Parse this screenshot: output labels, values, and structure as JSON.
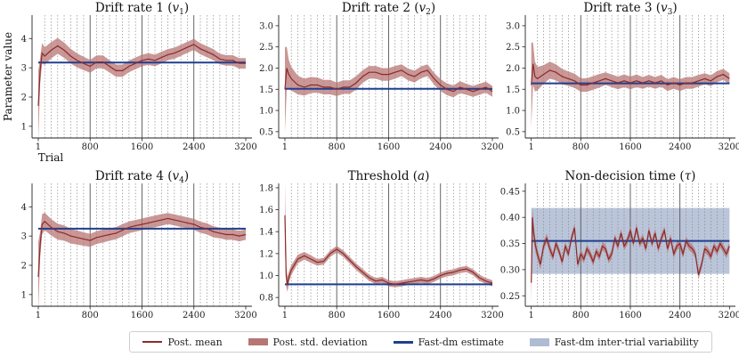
{
  "colors": {
    "mean": "#8b2a2a",
    "sd_band": "#b77574",
    "fastdm": "#1f3f8f",
    "variability": "#aebbd3",
    "grid_solid": "#555555",
    "grid_dotted": "#8a8a8a"
  },
  "figure": {
    "ylabel": "Parameter value",
    "xlabel": "Trial"
  },
  "legend": {
    "mean": "Post. mean",
    "sd": "Post. std. deviation",
    "fastdm": "Fast-dm estimate",
    "variability": "Fast-dm inter-trial variability"
  },
  "chart_data": [
    {
      "type": "line",
      "title": "Drift rate 1 (v₁)",
      "title_text": "Drift rate 1 (",
      "title_sym": "v",
      "title_sub": "1",
      "title_end": ")",
      "x_domain": [
        1,
        3200
      ],
      "ylim": [
        0.6,
        4.8
      ],
      "xticks": [
        1,
        800,
        1600,
        2400,
        3200
      ],
      "xtick_labels": [
        "1",
        "800",
        "1600",
        "2400",
        "3200"
      ],
      "yticks": [
        1,
        2,
        3,
        4
      ],
      "ytick_labels": [
        "1",
        "2",
        "3",
        "4"
      ],
      "fastdm": 3.18,
      "mean_x": [
        1,
        30,
        60,
        100,
        200,
        300,
        400,
        500,
        600,
        700,
        800,
        900,
        1000,
        1100,
        1200,
        1300,
        1400,
        1500,
        1600,
        1700,
        1800,
        1900,
        2000,
        2100,
        2200,
        2300,
        2400,
        2500,
        2600,
        2700,
        2800,
        2900,
        3000,
        3100,
        3200
      ],
      "mean_y": [
        1.7,
        2.9,
        3.5,
        3.4,
        3.6,
        3.75,
        3.6,
        3.4,
        3.25,
        3.15,
        3.05,
        3.2,
        3.2,
        3.05,
        2.9,
        2.9,
        3.05,
        3.15,
        3.25,
        3.3,
        3.25,
        3.35,
        3.45,
        3.5,
        3.6,
        3.7,
        3.8,
        3.65,
        3.55,
        3.45,
        3.3,
        3.25,
        3.25,
        3.15,
        3.15
      ],
      "sd": [
        1.2,
        0.45,
        0.35,
        0.3,
        0.28,
        0.27,
        0.26,
        0.25,
        0.24,
        0.23,
        0.22,
        0.22,
        0.22,
        0.21,
        0.21,
        0.21,
        0.2,
        0.2,
        0.2,
        0.2,
        0.2,
        0.2,
        0.19,
        0.19,
        0.19,
        0.19,
        0.19,
        0.19,
        0.19,
        0.19,
        0.18,
        0.18,
        0.18,
        0.18,
        0.18
      ],
      "show_ylabel": true,
      "show_xlabel": true
    },
    {
      "type": "line",
      "title": "Drift rate 2 (v₂)",
      "title_text": "Drift rate 2 (",
      "title_sym": "v",
      "title_sub": "2",
      "title_end": ")",
      "x_domain": [
        1,
        3200
      ],
      "ylim": [
        0.35,
        3.25
      ],
      "xticks": [
        1,
        800,
        1600,
        2400,
        3200
      ],
      "xtick_labels": [
        "1",
        "800",
        "1600",
        "2400",
        "3200"
      ],
      "yticks": [
        0.5,
        1.0,
        1.5,
        2.0,
        2.5,
        3.0
      ],
      "ytick_labels": [
        "0.5",
        "1.0",
        "1.5",
        "2.0",
        "2.5",
        "3.0"
      ],
      "fastdm": 1.51,
      "mean_x": [
        1,
        30,
        60,
        100,
        200,
        300,
        400,
        500,
        600,
        700,
        800,
        900,
        1000,
        1100,
        1200,
        1300,
        1400,
        1500,
        1600,
        1700,
        1800,
        1900,
        2000,
        2100,
        2200,
        2300,
        2400,
        2500,
        2600,
        2700,
        2800,
        2900,
        3000,
        3100,
        3200
      ],
      "mean_y": [
        1.5,
        2.0,
        1.85,
        1.75,
        1.6,
        1.55,
        1.6,
        1.6,
        1.55,
        1.55,
        1.5,
        1.55,
        1.55,
        1.65,
        1.8,
        1.9,
        1.9,
        1.85,
        1.85,
        1.9,
        1.95,
        1.85,
        1.8,
        1.9,
        1.95,
        1.75,
        1.6,
        1.5,
        1.45,
        1.55,
        1.5,
        1.45,
        1.5,
        1.55,
        1.45
      ],
      "sd": [
        1.0,
        0.5,
        0.35,
        0.28,
        0.22,
        0.2,
        0.19,
        0.18,
        0.17,
        0.17,
        0.16,
        0.16,
        0.16,
        0.16,
        0.15,
        0.15,
        0.15,
        0.15,
        0.15,
        0.15,
        0.14,
        0.14,
        0.14,
        0.14,
        0.14,
        0.14,
        0.14,
        0.14,
        0.14,
        0.14,
        0.13,
        0.13,
        0.13,
        0.13,
        0.13
      ],
      "show_ylabel": false,
      "show_xlabel": false
    },
    {
      "type": "line",
      "title": "Drift rate 3 (v₃)",
      "title_text": "Drift rate 3 (",
      "title_sym": "v",
      "title_sub": "3",
      "title_end": ")",
      "x_domain": [
        1,
        3200
      ],
      "ylim": [
        0.35,
        3.25
      ],
      "xticks": [
        1,
        800,
        1600,
        2400,
        3200
      ],
      "xtick_labels": [
        "1",
        "800",
        "1600",
        "2400",
        "3200"
      ],
      "yticks": [
        0.5,
        1.0,
        1.5,
        2.0,
        2.5,
        3.0
      ],
      "ytick_labels": [
        "0.5",
        "1.0",
        "1.5",
        "2.0",
        "2.5",
        "3.0"
      ],
      "fastdm": 1.64,
      "mean_x": [
        1,
        30,
        60,
        100,
        200,
        300,
        400,
        500,
        600,
        700,
        800,
        900,
        1000,
        1100,
        1200,
        1300,
        1400,
        1500,
        1600,
        1700,
        1800,
        1900,
        2000,
        2100,
        2200,
        2300,
        2400,
        2500,
        2600,
        2700,
        2800,
        2900,
        3000,
        3100,
        3200
      ],
      "mean_y": [
        1.6,
        2.1,
        1.8,
        1.75,
        1.85,
        1.95,
        1.9,
        1.8,
        1.75,
        1.7,
        1.6,
        1.6,
        1.65,
        1.7,
        1.75,
        1.7,
        1.65,
        1.7,
        1.65,
        1.7,
        1.65,
        1.7,
        1.65,
        1.7,
        1.6,
        1.65,
        1.6,
        1.65,
        1.65,
        1.7,
        1.75,
        1.7,
        1.8,
        1.85,
        1.75
      ],
      "sd": [
        1.0,
        0.5,
        0.35,
        0.28,
        0.22,
        0.2,
        0.19,
        0.18,
        0.17,
        0.17,
        0.16,
        0.16,
        0.16,
        0.16,
        0.15,
        0.15,
        0.15,
        0.15,
        0.15,
        0.15,
        0.14,
        0.14,
        0.14,
        0.14,
        0.14,
        0.14,
        0.14,
        0.14,
        0.14,
        0.14,
        0.13,
        0.13,
        0.13,
        0.13,
        0.13
      ],
      "show_ylabel": false,
      "show_xlabel": false
    },
    {
      "type": "line",
      "title": "Drift rate 4 (v₄)",
      "title_text": "Drift rate 4 (",
      "title_sym": "v",
      "title_sub": "4",
      "title_end": ")",
      "x_domain": [
        1,
        3200
      ],
      "ylim": [
        0.6,
        4.8
      ],
      "xticks": [
        1,
        800,
        1600,
        2400,
        3200
      ],
      "xtick_labels": [
        "1",
        "800",
        "1600",
        "2400",
        "3200"
      ],
      "yticks": [
        1,
        2,
        3,
        4
      ],
      "ytick_labels": [
        "1",
        "2",
        "3",
        "4"
      ],
      "fastdm": 3.25,
      "mean_x": [
        1,
        30,
        60,
        100,
        200,
        300,
        400,
        500,
        600,
        700,
        800,
        900,
        1000,
        1100,
        1200,
        1300,
        1400,
        1500,
        1600,
        1700,
        1800,
        1900,
        2000,
        2100,
        2200,
        2300,
        2400,
        2500,
        2600,
        2700,
        2800,
        2900,
        3000,
        3100,
        3200
      ],
      "mean_y": [
        1.6,
        2.7,
        3.4,
        3.5,
        3.3,
        3.15,
        3.1,
        3.0,
        2.95,
        2.9,
        2.85,
        2.95,
        3.0,
        3.05,
        3.1,
        3.2,
        3.3,
        3.35,
        3.4,
        3.45,
        3.5,
        3.55,
        3.6,
        3.55,
        3.5,
        3.45,
        3.4,
        3.3,
        3.25,
        3.15,
        3.1,
        3.05,
        3.05,
        3.0,
        3.05
      ],
      "sd": [
        1.2,
        0.45,
        0.35,
        0.3,
        0.28,
        0.27,
        0.26,
        0.25,
        0.24,
        0.23,
        0.22,
        0.22,
        0.22,
        0.21,
        0.21,
        0.21,
        0.2,
        0.2,
        0.2,
        0.2,
        0.2,
        0.2,
        0.19,
        0.19,
        0.19,
        0.19,
        0.19,
        0.19,
        0.19,
        0.19,
        0.18,
        0.18,
        0.18,
        0.18,
        0.18
      ],
      "show_ylabel": false,
      "show_xlabel": false
    },
    {
      "type": "line",
      "title": "Threshold (a)",
      "title_text": "Threshold (",
      "title_sym": "a",
      "title_sub": "",
      "title_end": ")",
      "x_domain": [
        1,
        3200
      ],
      "ylim": [
        0.72,
        1.84
      ],
      "xticks": [
        1,
        800,
        1600,
        2400,
        3200
      ],
      "xtick_labels": [
        "1",
        "800",
        "1600",
        "2400",
        "3200"
      ],
      "yticks": [
        0.8,
        1.0,
        1.2,
        1.4,
        1.6,
        1.8
      ],
      "ytick_labels": [
        "0.8",
        "1.0",
        "1.2",
        "1.4",
        "1.6",
        "1.8"
      ],
      "fastdm": 0.92,
      "mean_x": [
        1,
        20,
        40,
        70,
        100,
        200,
        300,
        400,
        500,
        600,
        700,
        750,
        800,
        900,
        1000,
        1100,
        1200,
        1300,
        1400,
        1500,
        1600,
        1700,
        1800,
        1900,
        2000,
        2100,
        2200,
        2300,
        2400,
        2500,
        2600,
        2700,
        2800,
        2900,
        3000,
        3100,
        3200
      ],
      "mean_y": [
        1.55,
        1.0,
        0.92,
        1.0,
        1.05,
        1.15,
        1.18,
        1.15,
        1.12,
        1.13,
        1.2,
        1.22,
        1.24,
        1.2,
        1.14,
        1.08,
        1.03,
        0.98,
        0.95,
        0.96,
        0.93,
        0.92,
        0.93,
        0.94,
        0.95,
        0.96,
        0.95,
        0.97,
        1.0,
        1.02,
        1.03,
        1.05,
        1.06,
        1.03,
        0.98,
        0.95,
        0.93
      ],
      "sd": [
        0.3,
        0.1,
        0.07,
        0.05,
        0.045,
        0.04,
        0.035,
        0.035,
        0.03,
        0.03,
        0.03,
        0.03,
        0.03,
        0.03,
        0.03,
        0.03,
        0.03,
        0.028,
        0.028,
        0.028,
        0.028,
        0.028,
        0.028,
        0.028,
        0.028,
        0.028,
        0.028,
        0.028,
        0.028,
        0.028,
        0.028,
        0.028,
        0.028,
        0.028,
        0.028,
        0.028,
        0.028
      ],
      "show_ylabel": false,
      "show_xlabel": false
    },
    {
      "type": "line",
      "title": "Non-decision time (τ)",
      "title_text": "Non-decision time (",
      "title_sym": "τ",
      "title_sub": "",
      "title_end": ")",
      "x_domain": [
        1,
        3200
      ],
      "ylim": [
        0.23,
        0.465
      ],
      "xticks": [
        1,
        800,
        1600,
        2400,
        3200
      ],
      "xtick_labels": [
        "1",
        "800",
        "1600",
        "2400",
        "3200"
      ],
      "yticks": [
        0.25,
        0.3,
        0.35,
        0.4,
        0.45
      ],
      "ytick_labels": [
        "0.25",
        "0.30",
        "0.35",
        "0.40",
        "0.45"
      ],
      "fastdm": 0.355,
      "variability_range": [
        0.292,
        0.418
      ],
      "mean_x": [
        1,
        20,
        40,
        70,
        100,
        150,
        200,
        250,
        300,
        350,
        400,
        450,
        500,
        550,
        600,
        650,
        700,
        750,
        800,
        850,
        900,
        950,
        1000,
        1050,
        1100,
        1150,
        1200,
        1250,
        1300,
        1350,
        1400,
        1450,
        1500,
        1550,
        1600,
        1650,
        1700,
        1750,
        1800,
        1850,
        1900,
        1950,
        2000,
        2050,
        2100,
        2150,
        2200,
        2250,
        2300,
        2350,
        2400,
        2450,
        2500,
        2550,
        2600,
        2650,
        2700,
        2750,
        2800,
        2850,
        2900,
        2950,
        3000,
        3050,
        3100,
        3150,
        3200
      ],
      "mean_y": [
        0.275,
        0.4,
        0.37,
        0.345,
        0.33,
        0.31,
        0.345,
        0.36,
        0.34,
        0.325,
        0.35,
        0.335,
        0.315,
        0.345,
        0.33,
        0.36,
        0.38,
        0.31,
        0.33,
        0.32,
        0.34,
        0.33,
        0.315,
        0.335,
        0.325,
        0.345,
        0.34,
        0.32,
        0.33,
        0.36,
        0.345,
        0.37,
        0.345,
        0.355,
        0.375,
        0.35,
        0.38,
        0.35,
        0.36,
        0.34,
        0.375,
        0.35,
        0.37,
        0.34,
        0.36,
        0.375,
        0.34,
        0.36,
        0.33,
        0.345,
        0.35,
        0.33,
        0.355,
        0.345,
        0.34,
        0.33,
        0.29,
        0.31,
        0.34,
        0.335,
        0.325,
        0.345,
        0.335,
        0.35,
        0.34,
        0.33,
        0.345
      ],
      "sd": [
        0.04,
        0.02,
        0.015,
        0.012,
        0.01,
        0.01,
        0.009,
        0.009,
        0.009,
        0.008,
        0.008,
        0.008,
        0.008,
        0.008,
        0.008,
        0.008,
        0.008,
        0.008,
        0.008,
        0.008,
        0.008,
        0.008,
        0.008,
        0.008,
        0.008,
        0.008,
        0.008,
        0.008,
        0.008,
        0.008,
        0.008,
        0.008,
        0.008,
        0.008,
        0.008,
        0.008,
        0.008,
        0.008,
        0.008,
        0.008,
        0.008,
        0.008,
        0.008,
        0.008,
        0.008,
        0.008,
        0.008,
        0.008,
        0.008,
        0.008,
        0.008,
        0.008,
        0.008,
        0.008,
        0.008,
        0.008,
        0.008,
        0.008,
        0.008,
        0.008,
        0.008,
        0.008,
        0.008,
        0.008,
        0.008,
        0.008,
        0.008
      ],
      "show_ylabel": false,
      "show_xlabel": false
    }
  ]
}
